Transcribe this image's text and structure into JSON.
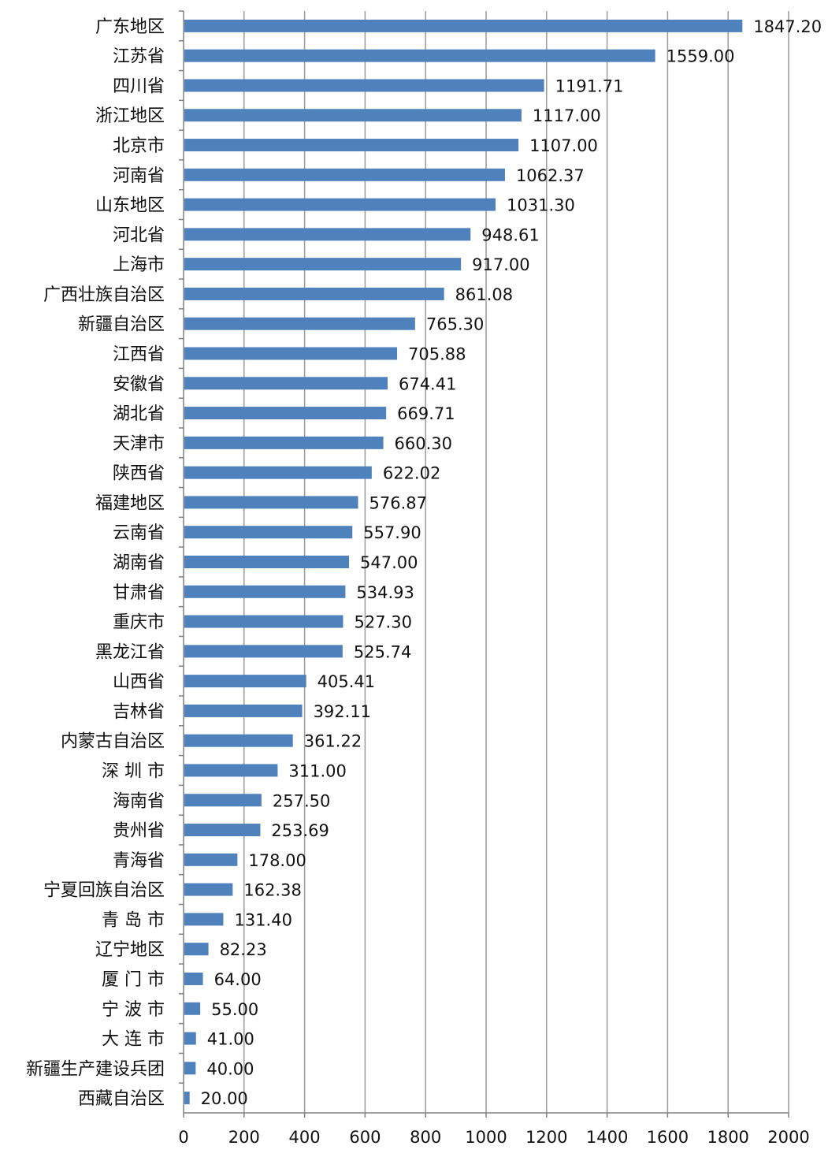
{
  "chart_data": {
    "type": "bar",
    "orientation": "horizontal",
    "categories": [
      "广东地区",
      "江苏省",
      "四川省",
      "浙江地区",
      "北京市",
      "河南省",
      "山东地区",
      "河北省",
      "上海市",
      "广西壮族自治区",
      "新疆自治区",
      "江西省",
      "安徽省",
      "湖北省",
      "天津市",
      "陕西省",
      "福建地区",
      "云南省",
      "湖南省",
      "甘肃省",
      "重庆市",
      "黑龙江省",
      "山西省",
      "吉林省",
      "内蒙古自治区",
      "深 圳 市",
      "海南省",
      "贵州省",
      "青海省",
      "宁夏回族自治区",
      "青 岛 市",
      "辽宁地区",
      "厦 门 市",
      "宁 波 市",
      "大 连 市",
      "新疆生产建设兵团",
      "西藏自治区"
    ],
    "values": [
      1847.2,
      1559.0,
      1191.71,
      1117.0,
      1107.0,
      1062.37,
      1031.3,
      948.61,
      917.0,
      861.08,
      765.3,
      705.88,
      674.41,
      669.71,
      660.3,
      622.02,
      576.87,
      557.9,
      547.0,
      534.93,
      527.3,
      525.74,
      405.41,
      392.11,
      361.22,
      311.0,
      257.5,
      253.69,
      178.0,
      162.38,
      131.4,
      82.23,
      64.0,
      55.0,
      41.0,
      40.0,
      20.0
    ],
    "value_labels": [
      "1847.20",
      "1559.00",
      "1191.71",
      "1117.00",
      "1107.00",
      "1062.37",
      "1031.30",
      "948.61",
      "917.00",
      "861.08",
      "765.30",
      "705.88",
      "674.41",
      "669.71",
      "660.30",
      "622.02",
      "576.87",
      "557.90",
      "547.00",
      "534.93",
      "527.30",
      "525.74",
      "405.41",
      "392.11",
      "361.22",
      "311.00",
      "257.50",
      "253.69",
      "178.00",
      "162.38",
      "131.40",
      "82.23",
      "64.00",
      "55.00",
      "41.00",
      "40.00",
      "20.00"
    ],
    "xlim": [
      0,
      2000
    ],
    "x_ticks": [
      "0",
      "200",
      "400",
      "600",
      "800",
      "1000",
      "1200",
      "1400",
      "1600",
      "1800",
      "2000"
    ],
    "title": "",
    "xlabel": "",
    "ylabel": "",
    "grid": "vertical",
    "legend": "none",
    "bar_color": "#4f81bd"
  }
}
